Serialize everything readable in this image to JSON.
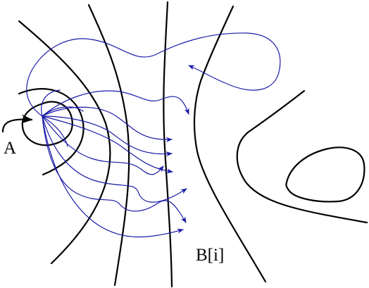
{
  "labels": {
    "source": "A",
    "boundary": "B[i]"
  },
  "colors": {
    "level_curves": "#000000",
    "trajectories": "#1a1aa8"
  }
}
